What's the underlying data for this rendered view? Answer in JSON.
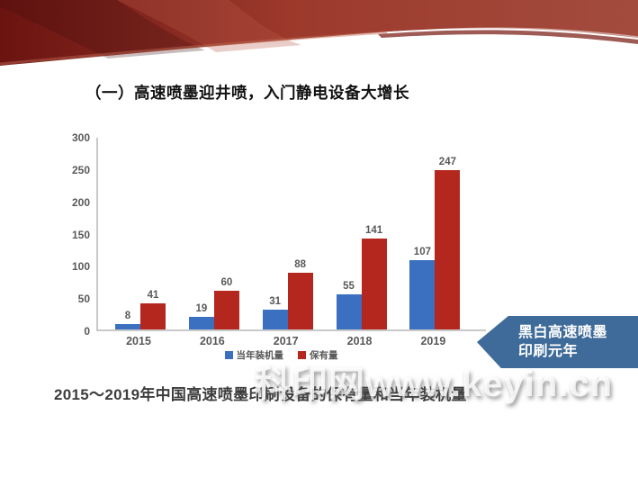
{
  "slide": {
    "title": "（一）高速喷墨迎井喷，入门静电设备大增长",
    "caption": "2015～2019年中国高速喷墨印刷设备的保有量和当年装机量",
    "watermark": "科印网www.keyin.cn",
    "callout": {
      "line1": "黑白高速喷墨",
      "line2": "印刷元年",
      "color": "#3e6b99"
    },
    "ribbon_colors": {
      "dark": "#6a1310",
      "mid": "#9c392c",
      "light": "#a34c3e"
    }
  },
  "chart_data": {
    "type": "bar",
    "title": "",
    "xlabel": "",
    "ylabel": "",
    "categories": [
      "2015",
      "2016",
      "2017",
      "2018",
      "2019"
    ],
    "series": [
      {
        "name": "当年装机量",
        "color": "#3a70bf",
        "values": [
          8,
          19,
          31,
          55,
          107
        ]
      },
      {
        "name": "保有量",
        "color": "#b3271e",
        "values": [
          41,
          60,
          88,
          141,
          247
        ]
      }
    ],
    "ylim": [
      0,
      300
    ],
    "y_ticks": [
      0,
      50,
      100,
      150,
      200,
      250,
      300
    ],
    "grid": false,
    "legend_position": "bottom"
  }
}
